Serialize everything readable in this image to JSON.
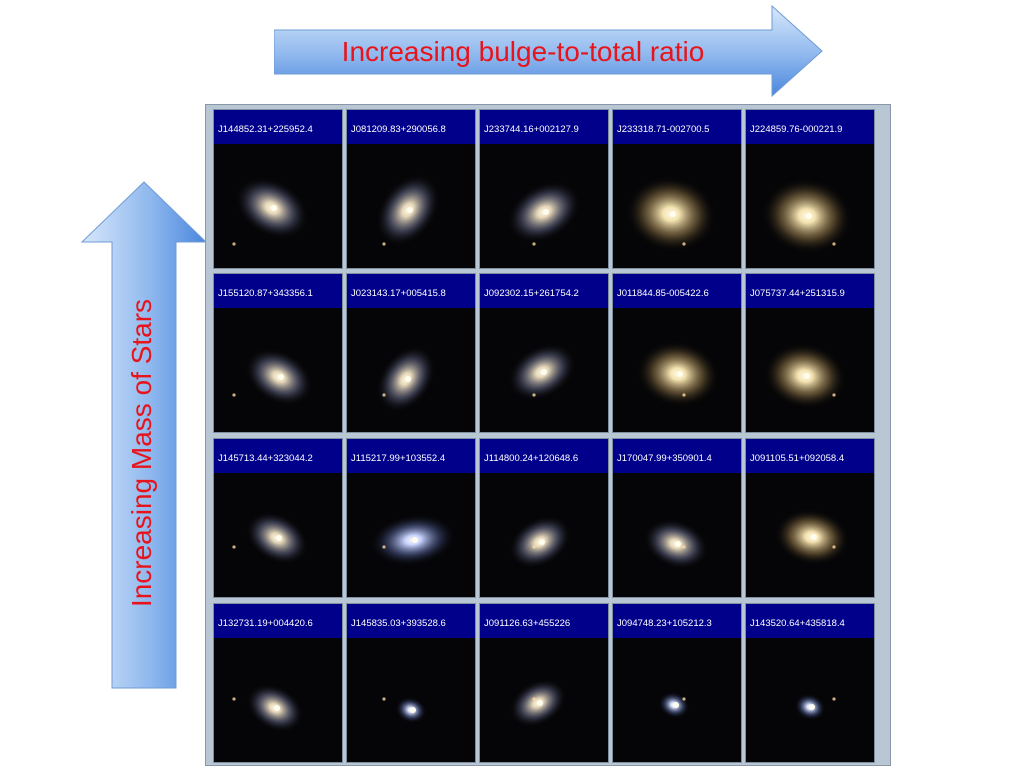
{
  "axes": {
    "horizontal_label": "Increasing bulge-to-total ratio",
    "vertical_label": "Increasing Mass of Stars"
  },
  "colors": {
    "arrow_light": "#c6dcf7",
    "arrow_dark": "#4a86dd",
    "label_text": "#e8141c",
    "id_band": "#00008b",
    "grid_bg": "#b9c6d3"
  },
  "rows": [
    [
      {
        "id": "J144852.31+225952.4",
        "type": "spiral"
      },
      {
        "id": "J081209.83+290056.8",
        "type": "spiral"
      },
      {
        "id": "J233744.16+002127.9",
        "type": "spiral"
      },
      {
        "id": "J233318.71-002700.5",
        "type": "elliptical"
      },
      {
        "id": "J224859.76-000221.9",
        "type": "elliptical"
      }
    ],
    [
      {
        "id": "J155120.87+343356.1",
        "type": "spiral"
      },
      {
        "id": "J023143.17+005415.8",
        "type": "spiral"
      },
      {
        "id": "J092302.15+261754.2",
        "type": "spiral"
      },
      {
        "id": "J011844.85-005422.6",
        "type": "elliptical"
      },
      {
        "id": "J075737.44+251315.9",
        "type": "elliptical"
      }
    ],
    [
      {
        "id": "J145713.44+323044.2",
        "type": "spiral"
      },
      {
        "id": "J115217.99+103552.4",
        "type": "irregular"
      },
      {
        "id": "J114800.24+120648.6",
        "type": "spiral"
      },
      {
        "id": "J170047.99+350901.4",
        "type": "spiral"
      },
      {
        "id": "J091105.51+092058.4",
        "type": "elliptical"
      }
    ],
    [
      {
        "id": "J132731.19+004420.6",
        "type": "spiral"
      },
      {
        "id": "J145835.03+393528.6",
        "type": "compact"
      },
      {
        "id": "J091126.63+455226",
        "type": "spiral"
      },
      {
        "id": "J094748.23+105212.3",
        "type": "compact"
      },
      {
        "id": "J143520.64+435818.4",
        "type": "compact"
      }
    ]
  ]
}
